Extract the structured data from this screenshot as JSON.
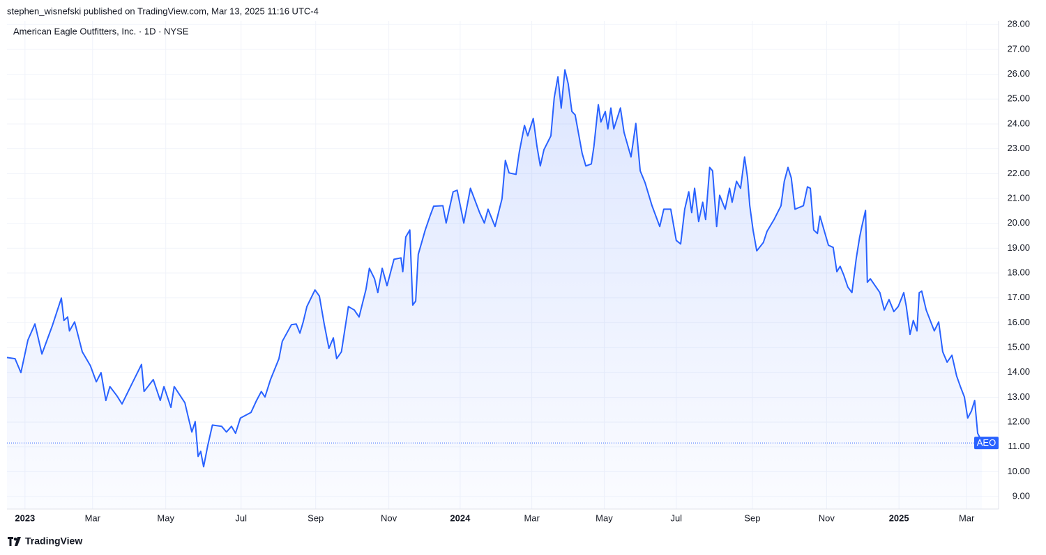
{
  "header": {
    "publisher": "stephen_wisnefski published on TradingView.com, Mar 13, 2025 11:16 UTC-4",
    "footer": "TradingView"
  },
  "chart_data": {
    "type": "area",
    "title": "American Eagle Outfitters, Inc. · 1D · NYSE",
    "symbol": "AEO",
    "color": "#2962ff",
    "grid": true,
    "price_line": 11.16,
    "xlim": [
      -0.49,
      26.49
    ],
    "ylim": [
      8.5,
      28.4
    ],
    "xticks": [
      {
        "value": 0,
        "label": "2023"
      },
      {
        "value": 1.84,
        "label": "Mar"
      },
      {
        "value": 3.83,
        "label": "May"
      },
      {
        "value": 5.88,
        "label": "Jul"
      },
      {
        "value": 7.91,
        "label": "Sep"
      },
      {
        "value": 9.9,
        "label": "Nov"
      },
      {
        "value": 11.84,
        "label": "2024"
      },
      {
        "value": 13.79,
        "label": "Mar"
      },
      {
        "value": 15.76,
        "label": "May"
      },
      {
        "value": 17.72,
        "label": "Jul"
      },
      {
        "value": 19.79,
        "label": "Sep"
      },
      {
        "value": 21.81,
        "label": "Nov"
      },
      {
        "value": 23.78,
        "label": "2025"
      },
      {
        "value": 25.62,
        "label": "Mar"
      }
    ],
    "year_ticks": [
      0,
      6,
      12
    ],
    "yticks": [
      {
        "value": 9,
        "label": "9.00"
      },
      {
        "value": 10,
        "label": "10.00"
      },
      {
        "value": 11,
        "label": "11.00"
      },
      {
        "value": 12,
        "label": "12.00"
      },
      {
        "value": 13,
        "label": "13.00"
      },
      {
        "value": 14,
        "label": "14.00"
      },
      {
        "value": 15,
        "label": "15.00"
      },
      {
        "value": 16,
        "label": "16.00"
      },
      {
        "value": 17,
        "label": "17.00"
      },
      {
        "value": 18,
        "label": "18.00"
      },
      {
        "value": 19,
        "label": "19.00"
      },
      {
        "value": 20,
        "label": "20.00"
      },
      {
        "value": 21,
        "label": "21.00"
      },
      {
        "value": 22,
        "label": "22.00"
      },
      {
        "value": 23,
        "label": "23.00"
      },
      {
        "value": 24,
        "label": "24.00"
      },
      {
        "value": 25,
        "label": "25.00"
      },
      {
        "value": 26,
        "label": "26.00"
      },
      {
        "value": 27,
        "label": "27.00"
      },
      {
        "value": 28,
        "label": "28.00"
      }
    ],
    "x": [
      -0.49,
      -0.27,
      -0.11,
      0.08,
      0.27,
      0.46,
      0.74,
      0.99,
      1.06,
      1.16,
      1.21,
      1.35,
      1.56,
      1.78,
      1.94,
      2.07,
      2.2,
      2.31,
      2.5,
      2.64,
      2.92,
      3.17,
      3.24,
      3.49,
      3.68,
      3.78,
      3.97,
      4.06,
      4.35,
      4.44,
      4.54,
      4.63,
      4.71,
      4.78,
      4.86,
      4.97,
      5.1,
      5.35,
      5.48,
      5.62,
      5.73,
      5.86,
      6.15,
      6.3,
      6.43,
      6.53,
      6.68,
      6.91,
      7.0,
      7.25,
      7.38,
      7.48,
      7.57,
      7.67,
      7.89,
      8.01,
      8.14,
      8.27,
      8.39,
      8.48,
      8.61,
      8.8,
      8.96,
      9.09,
      9.28,
      9.37,
      9.51,
      9.6,
      9.72,
      9.85,
      10.04,
      10.23,
      10.28,
      10.36,
      10.47,
      10.55,
      10.63,
      10.7,
      10.89,
      11.02,
      11.12,
      11.37,
      11.46,
      11.65,
      11.76,
      11.94,
      12.12,
      12.37,
      12.5,
      12.6,
      12.79,
      12.98,
      13.07,
      13.17,
      13.36,
      13.45,
      13.59,
      13.68,
      13.83,
      13.93,
      14.02,
      14.12,
      14.31,
      14.4,
      14.5,
      14.59,
      14.69,
      14.78,
      14.88,
      14.97,
      15.16,
      15.26,
      15.41,
      15.48,
      15.6,
      15.67,
      15.79,
      15.86,
      15.94,
      16.02,
      16.2,
      16.3,
      16.49,
      16.62,
      16.74,
      16.87,
      17.06,
      17.27,
      17.38,
      17.57,
      17.72,
      17.84,
      17.95,
      18.06,
      18.14,
      18.22,
      18.33,
      18.44,
      18.52,
      18.63,
      18.71,
      18.82,
      18.9,
      19.05,
      19.17,
      19.24,
      19.36,
      19.47,
      19.58,
      19.66,
      19.72,
      19.81,
      19.91,
      20.09,
      20.19,
      20.38,
      20.57,
      20.66,
      20.76,
      20.85,
      20.95,
      21.18,
      21.29,
      21.37,
      21.46,
      21.56,
      21.63,
      21.86,
      21.99,
      22.09,
      22.18,
      22.28,
      22.39,
      22.5,
      22.62,
      22.71,
      22.77,
      22.87,
      22.92,
      23.0,
      23.26,
      23.38,
      23.51,
      23.64,
      23.76,
      23.91,
      23.98,
      24.08,
      24.17,
      24.27,
      24.33,
      24.4,
      24.52,
      24.74,
      24.86,
      24.97,
      25.09,
      25.22,
      25.35,
      25.45,
      25.56,
      25.65,
      25.75,
      25.84,
      25.92,
      26.0,
      26.04
    ],
    "values": [
      14.6,
      14.55,
      13.99,
      15.3,
      15.95,
      14.74,
      15.86,
      16.99,
      16.09,
      16.23,
      15.67,
      16.03,
      14.83,
      14.27,
      13.62,
      13.99,
      12.87,
      13.43,
      13.06,
      12.73,
      13.57,
      14.32,
      13.23,
      13.71,
      12.87,
      13.43,
      12.59,
      13.43,
      12.78,
      12.22,
      11.6,
      12.02,
      10.62,
      10.82,
      10.2,
      11.04,
      11.88,
      11.83,
      11.6,
      11.83,
      11.55,
      12.16,
      12.39,
      12.87,
      13.23,
      13.01,
      13.71,
      14.55,
      15.25,
      15.92,
      15.95,
      15.58,
      16.03,
      16.65,
      17.32,
      17.07,
      15.95,
      14.97,
      15.39,
      14.55,
      14.83,
      16.65,
      16.51,
      16.23,
      17.35,
      18.19,
      17.77,
      17.21,
      18.19,
      17.49,
      18.55,
      18.61,
      18.05,
      19.45,
      19.73,
      16.71,
      16.87,
      18.75,
      19.73,
      20.29,
      20.69,
      20.71,
      20.01,
      21.27,
      21.33,
      20.01,
      21.41,
      20.43,
      20.01,
      20.57,
      19.87,
      20.99,
      22.53,
      22.03,
      21.97,
      22.87,
      23.94,
      23.52,
      24.22,
      23.1,
      22.31,
      22.96,
      23.52,
      25.06,
      25.9,
      24.64,
      26.18,
      25.62,
      24.5,
      24.36,
      22.82,
      22.31,
      22.39,
      23.1,
      24.78,
      24.08,
      24.5,
      23.8,
      24.64,
      23.8,
      24.64,
      23.66,
      22.67,
      24.02,
      22.11,
      21.64,
      20.71,
      19.87,
      20.57,
      20.57,
      19.31,
      19.17,
      20.57,
      21.27,
      20.43,
      21.41,
      20.07,
      20.85,
      20.15,
      22.25,
      22.11,
      19.87,
      21.13,
      20.57,
      21.41,
      20.85,
      21.69,
      21.41,
      22.67,
      21.83,
      20.71,
      19.73,
      18.89,
      19.23,
      19.68,
      20.15,
      20.71,
      21.69,
      22.25,
      21.83,
      20.57,
      20.71,
      21.47,
      21.41,
      19.73,
      19.59,
      20.29,
      19.12,
      19.03,
      18.05,
      18.27,
      17.91,
      17.43,
      17.21,
      18.61,
      19.45,
      19.87,
      20.52,
      17.63,
      17.77,
      17.21,
      16.51,
      16.93,
      16.45,
      16.65,
      17.21,
      16.65,
      15.53,
      16.09,
      15.67,
      17.21,
      17.27,
      16.51,
      15.67,
      16.03,
      14.83,
      14.41,
      14.69,
      13.85,
      13.43,
      13.01,
      12.16,
      12.44,
      12.87,
      11.55,
      11.32,
      11.16
    ]
  }
}
